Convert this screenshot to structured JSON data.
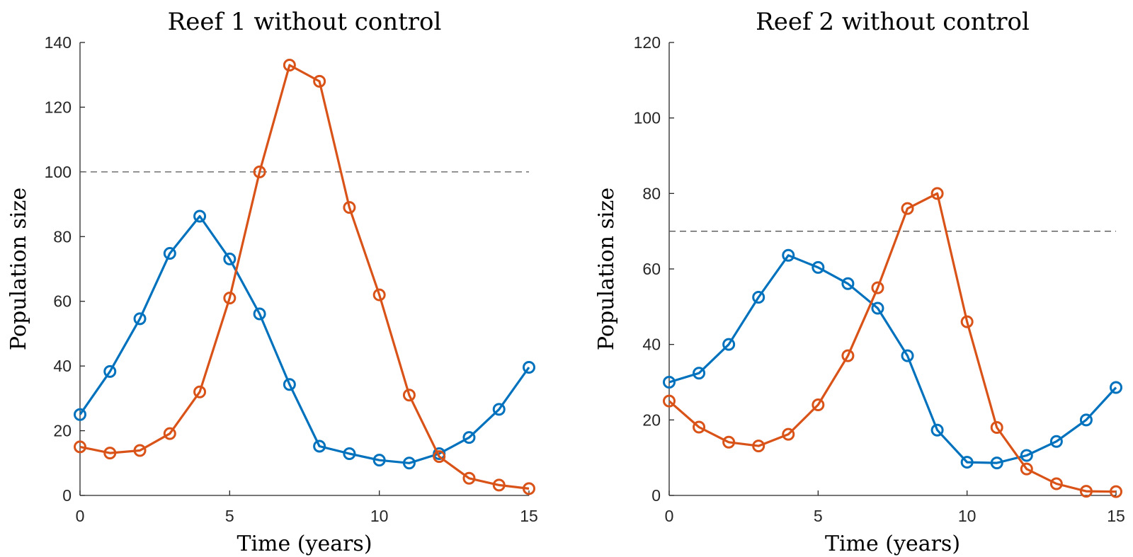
{
  "chart_data": [
    {
      "type": "line",
      "title": "Reef 1 without control",
      "xlabel": "Time (years)",
      "ylabel": "Population size",
      "xlim": [
        0,
        15
      ],
      "ylim": [
        0,
        140
      ],
      "xticks": [
        0,
        5,
        10,
        15
      ],
      "yticks": [
        0,
        20,
        40,
        60,
        80,
        100,
        120,
        140
      ],
      "threshold": 100,
      "x": [
        0,
        1,
        2,
        3,
        4,
        5,
        6,
        7,
        8,
        9,
        10,
        11,
        12,
        13,
        14,
        15
      ],
      "series": [
        {
          "color": "#0072BD",
          "values": [
            25,
            38.3,
            54.6,
            74.8,
            86.3,
            73.1,
            56.1,
            34.3,
            15.2,
            12.9,
            10.9,
            10.0,
            12.9,
            17.9,
            26.6,
            39.6
          ]
        },
        {
          "color": "#D95319",
          "values": [
            15,
            13.1,
            13.9,
            19.1,
            32.0,
            61.0,
            100.0,
            133.0,
            128.0,
            89.0,
            62.0,
            31.0,
            12.0,
            5.3,
            3.2,
            2.1
          ]
        }
      ],
      "grid": false
    },
    {
      "type": "line",
      "title": "Reef 2 without control",
      "xlabel": "Time (years)",
      "ylabel": "Population size",
      "xlim": [
        0,
        15
      ],
      "ylim": [
        0,
        120
      ],
      "xticks": [
        0,
        5,
        10,
        15
      ],
      "yticks": [
        0,
        20,
        40,
        60,
        80,
        100,
        120
      ],
      "threshold": 70,
      "x": [
        0,
        1,
        2,
        3,
        4,
        5,
        6,
        7,
        8,
        9,
        10,
        11,
        12,
        13,
        14,
        15
      ],
      "series": [
        {
          "color": "#0072BD",
          "values": [
            30,
            32.4,
            40,
            52.5,
            63.6,
            60.4,
            56.1,
            49.6,
            37.0,
            17.3,
            8.8,
            8.6,
            10.6,
            14.3,
            20.0,
            28.6
          ]
        },
        {
          "color": "#D95319",
          "values": [
            25,
            18.1,
            14.1,
            13.1,
            16.2,
            24.0,
            37.0,
            55.0,
            76.0,
            80.0,
            46.0,
            18.0,
            7.0,
            3.1,
            1.1,
            1.0
          ]
        }
      ],
      "grid": false
    }
  ]
}
